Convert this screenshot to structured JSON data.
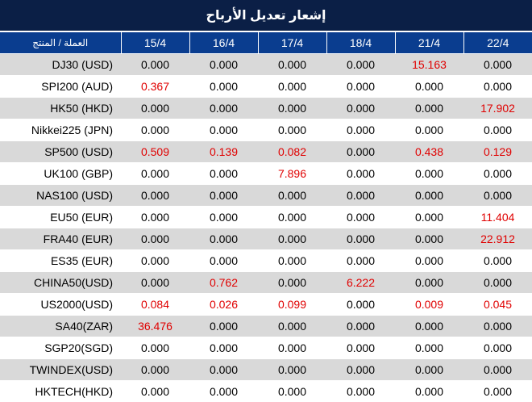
{
  "title": "إشعار تعديل الأرباح",
  "header": {
    "product_col": "العملة / المنتج",
    "dates": [
      "15/4",
      "16/4",
      "17/4",
      "18/4",
      "21/4",
      "22/4"
    ]
  },
  "colors": {
    "title_bg": "#0b1f46",
    "header_bg": "#0a3d8f",
    "highlight": "#e00000",
    "stripe": "#d9d9d9"
  },
  "rows": [
    {
      "name": "DJ30 (USD)",
      "values": [
        "0.000",
        "0.000",
        "0.000",
        "0.000",
        "15.163",
        "0.000"
      ]
    },
    {
      "name": "SPI200 (AUD)",
      "values": [
        "0.367",
        "0.000",
        "0.000",
        "0.000",
        "0.000",
        "0.000"
      ]
    },
    {
      "name": "HK50 (HKD)",
      "values": [
        "0.000",
        "0.000",
        "0.000",
        "0.000",
        "0.000",
        "17.902"
      ]
    },
    {
      "name": "Nikkei225 (JPN)",
      "values": [
        "0.000",
        "0.000",
        "0.000",
        "0.000",
        "0.000",
        "0.000"
      ]
    },
    {
      "name": "SP500 (USD)",
      "values": [
        "0.509",
        "0.139",
        "0.082",
        "0.000",
        "0.438",
        "0.129"
      ]
    },
    {
      "name": "UK100 (GBP)",
      "values": [
        "0.000",
        "0.000",
        "7.896",
        "0.000",
        "0.000",
        "0.000"
      ]
    },
    {
      "name": "NAS100 (USD)",
      "values": [
        "0.000",
        "0.000",
        "0.000",
        "0.000",
        "0.000",
        "0.000"
      ]
    },
    {
      "name": "EU50 (EUR)",
      "values": [
        "0.000",
        "0.000",
        "0.000",
        "0.000",
        "0.000",
        "11.404"
      ]
    },
    {
      "name": "FRA40 (EUR)",
      "values": [
        "0.000",
        "0.000",
        "0.000",
        "0.000",
        "0.000",
        "22.912"
      ]
    },
    {
      "name": "ES35 (EUR)",
      "values": [
        "0.000",
        "0.000",
        "0.000",
        "0.000",
        "0.000",
        "0.000"
      ]
    },
    {
      "name": "CHINA50(USD)",
      "values": [
        "0.000",
        "0.762",
        "0.000",
        "6.222",
        "0.000",
        "0.000"
      ]
    },
    {
      "name": "US2000(USD)",
      "values": [
        "0.084",
        "0.026",
        "0.099",
        "0.000",
        "0.009",
        "0.045"
      ]
    },
    {
      "name": "SA40(ZAR)",
      "values": [
        "36.476",
        "0.000",
        "0.000",
        "0.000",
        "0.000",
        "0.000"
      ]
    },
    {
      "name": "SGP20(SGD)",
      "values": [
        "0.000",
        "0.000",
        "0.000",
        "0.000",
        "0.000",
        "0.000"
      ]
    },
    {
      "name": "TWINDEX(USD)",
      "values": [
        "0.000",
        "0.000",
        "0.000",
        "0.000",
        "0.000",
        "0.000"
      ]
    },
    {
      "name": "HKTECH(HKD)",
      "values": [
        "0.000",
        "0.000",
        "0.000",
        "0.000",
        "0.000",
        "0.000"
      ]
    }
  ]
}
